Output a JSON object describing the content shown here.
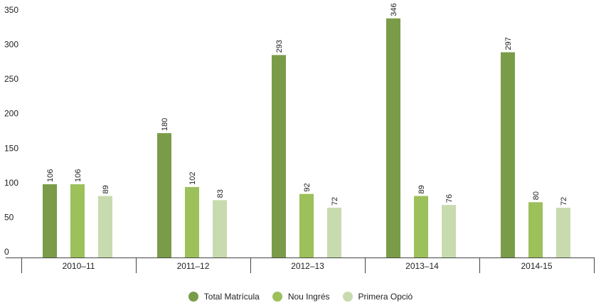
{
  "chart_data": {
    "type": "bar",
    "categories": [
      "2010–11",
      "2011–12",
      "2012–13",
      "2013–14",
      "2014-15"
    ],
    "series": [
      {
        "name": "Total Matrícula",
        "values": [
          106,
          180,
          293,
          346,
          297
        ],
        "color": "#7a9c48"
      },
      {
        "name": "Nou Ingrés",
        "values": [
          106,
          102,
          92,
          89,
          80
        ],
        "color": "#9cc05a"
      },
      {
        "name": "Primera Opció",
        "values": [
          89,
          83,
          72,
          76,
          72
        ],
        "color": "#c8dbae"
      }
    ],
    "yticks": [
      0,
      50,
      100,
      150,
      200,
      250,
      300,
      350
    ],
    "ylim": [
      0,
      350
    ],
    "title": "",
    "xlabel": "",
    "ylabel": "",
    "grid": false,
    "legend_position": "bottom"
  }
}
